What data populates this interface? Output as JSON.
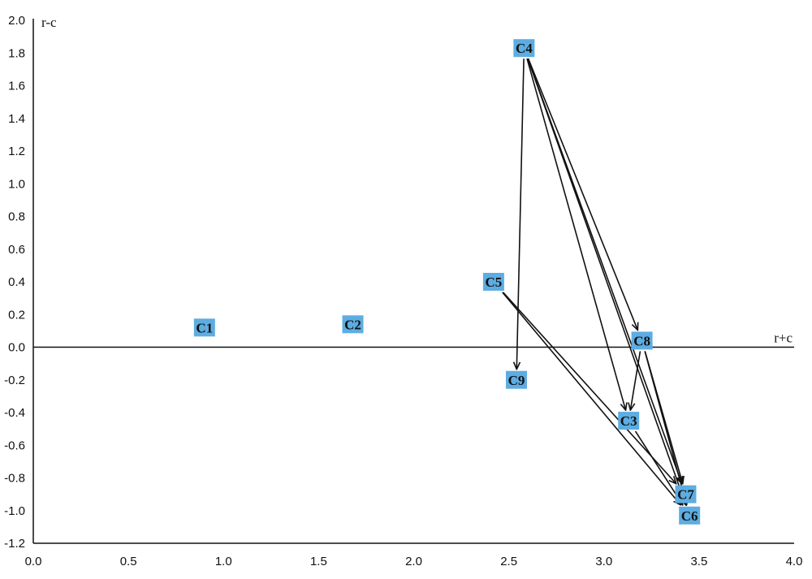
{
  "chart_data": {
    "type": "scatter",
    "title": "",
    "xlabel": "r+c",
    "ylabel": "r-c",
    "xlim": [
      0.0,
      4.0
    ],
    "ylim": [
      -1.2,
      2.0
    ],
    "x_ticks": [
      "0.0",
      "0.5",
      "1.0",
      "1.5",
      "2.0",
      "2.5",
      "3.0",
      "3.5",
      "4.0"
    ],
    "y_ticks": [
      "2.0",
      "1.8",
      "1.6",
      "1.4",
      "1.2",
      "1.0",
      "0.8",
      "0.6",
      "0.4",
      "0.2",
      "0.0",
      "-0.2",
      "-0.4",
      "-0.6",
      "-0.8",
      "-1.0",
      "-1.2"
    ],
    "grid": false,
    "points": [
      {
        "label": "C1",
        "x": 0.9,
        "y": 0.12
      },
      {
        "label": "C2",
        "x": 1.68,
        "y": 0.14
      },
      {
        "label": "C3",
        "x": 3.13,
        "y": -0.45
      },
      {
        "label": "C4",
        "x": 2.58,
        "y": 1.83
      },
      {
        "label": "C5",
        "x": 2.42,
        "y": 0.4
      },
      {
        "label": "C6",
        "x": 3.45,
        "y": -1.03
      },
      {
        "label": "C7",
        "x": 3.43,
        "y": -0.9
      },
      {
        "label": "C8",
        "x": 3.2,
        "y": 0.04
      },
      {
        "label": "C9",
        "x": 2.54,
        "y": -0.2
      }
    ],
    "arrows": [
      {
        "from": "C4",
        "to": "C9"
      },
      {
        "from": "C4",
        "to": "C8"
      },
      {
        "from": "C4",
        "to": "C3"
      },
      {
        "from": "C4",
        "to": "C7"
      },
      {
        "from": "C4",
        "to": "C6"
      },
      {
        "from": "C5",
        "to": "C7"
      },
      {
        "from": "C5",
        "to": "C6"
      },
      {
        "from": "C8",
        "to": "C3"
      },
      {
        "from": "C8",
        "to": "C7"
      },
      {
        "from": "C8",
        "to": "C6"
      },
      {
        "from": "C3",
        "to": "C6"
      }
    ]
  }
}
